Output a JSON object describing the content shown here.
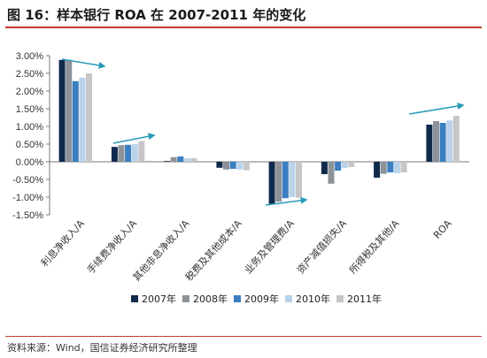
{
  "header": {
    "title": "图 16：样本银行 ROA 在 2007-2011 年的变化"
  },
  "footer": {
    "source": "资料来源：Wind，国信证券经济研究所整理"
  },
  "chart_data": {
    "type": "bar",
    "categories": [
      "利息净收入/A",
      "手续费净收入/A",
      "其他非息净收入/A",
      "税费及其他成本/A",
      "业务及管理费/A",
      "资产减值损失/A",
      "所得税及其他/A",
      "ROA"
    ],
    "series": [
      {
        "name": "2007年",
        "color": "#102a4c",
        "values": [
          2.88,
          0.42,
          0.02,
          -0.17,
          -1.2,
          -0.35,
          -0.45,
          1.05
        ]
      },
      {
        "name": "2008年",
        "color": "#8d9198",
        "values": [
          2.88,
          0.47,
          0.13,
          -0.22,
          -1.13,
          -0.62,
          -0.34,
          1.15
        ]
      },
      {
        "name": "2009年",
        "color": "#3b7fc0",
        "values": [
          2.28,
          0.48,
          0.15,
          -0.2,
          -1.03,
          -0.25,
          -0.3,
          1.1
        ]
      },
      {
        "name": "2010年",
        "color": "#bad3ea",
        "values": [
          2.38,
          0.5,
          0.1,
          -0.22,
          -1.0,
          -0.18,
          -0.32,
          1.17
        ]
      },
      {
        "name": "2011年",
        "color": "#c6c6c6",
        "values": [
          2.5,
          0.58,
          0.1,
          -0.24,
          -1.02,
          -0.15,
          -0.3,
          1.3
        ]
      }
    ],
    "ylim": [
      -1.5,
      3.0
    ],
    "yticks": [
      "3.00%",
      "2.50%",
      "2.00%",
      "1.50%",
      "1.00%",
      "0.50%",
      "0.00%",
      "-0.50%",
      "-1.00%",
      "-1.50%"
    ],
    "annotations": [
      {
        "type": "trend-arrow",
        "category": "利息净收入/A",
        "color": "#2a9bb8"
      },
      {
        "type": "trend-arrow",
        "category": "手续费净收入/A",
        "color": "#2a9bb8"
      },
      {
        "type": "trend-arrow",
        "category": "业务及管理费/A",
        "color": "#2a9bb8"
      },
      {
        "type": "trend-arrow",
        "category": "ROA",
        "color": "#2a9bb8"
      }
    ],
    "legend_position": "bottom",
    "grid": false
  }
}
